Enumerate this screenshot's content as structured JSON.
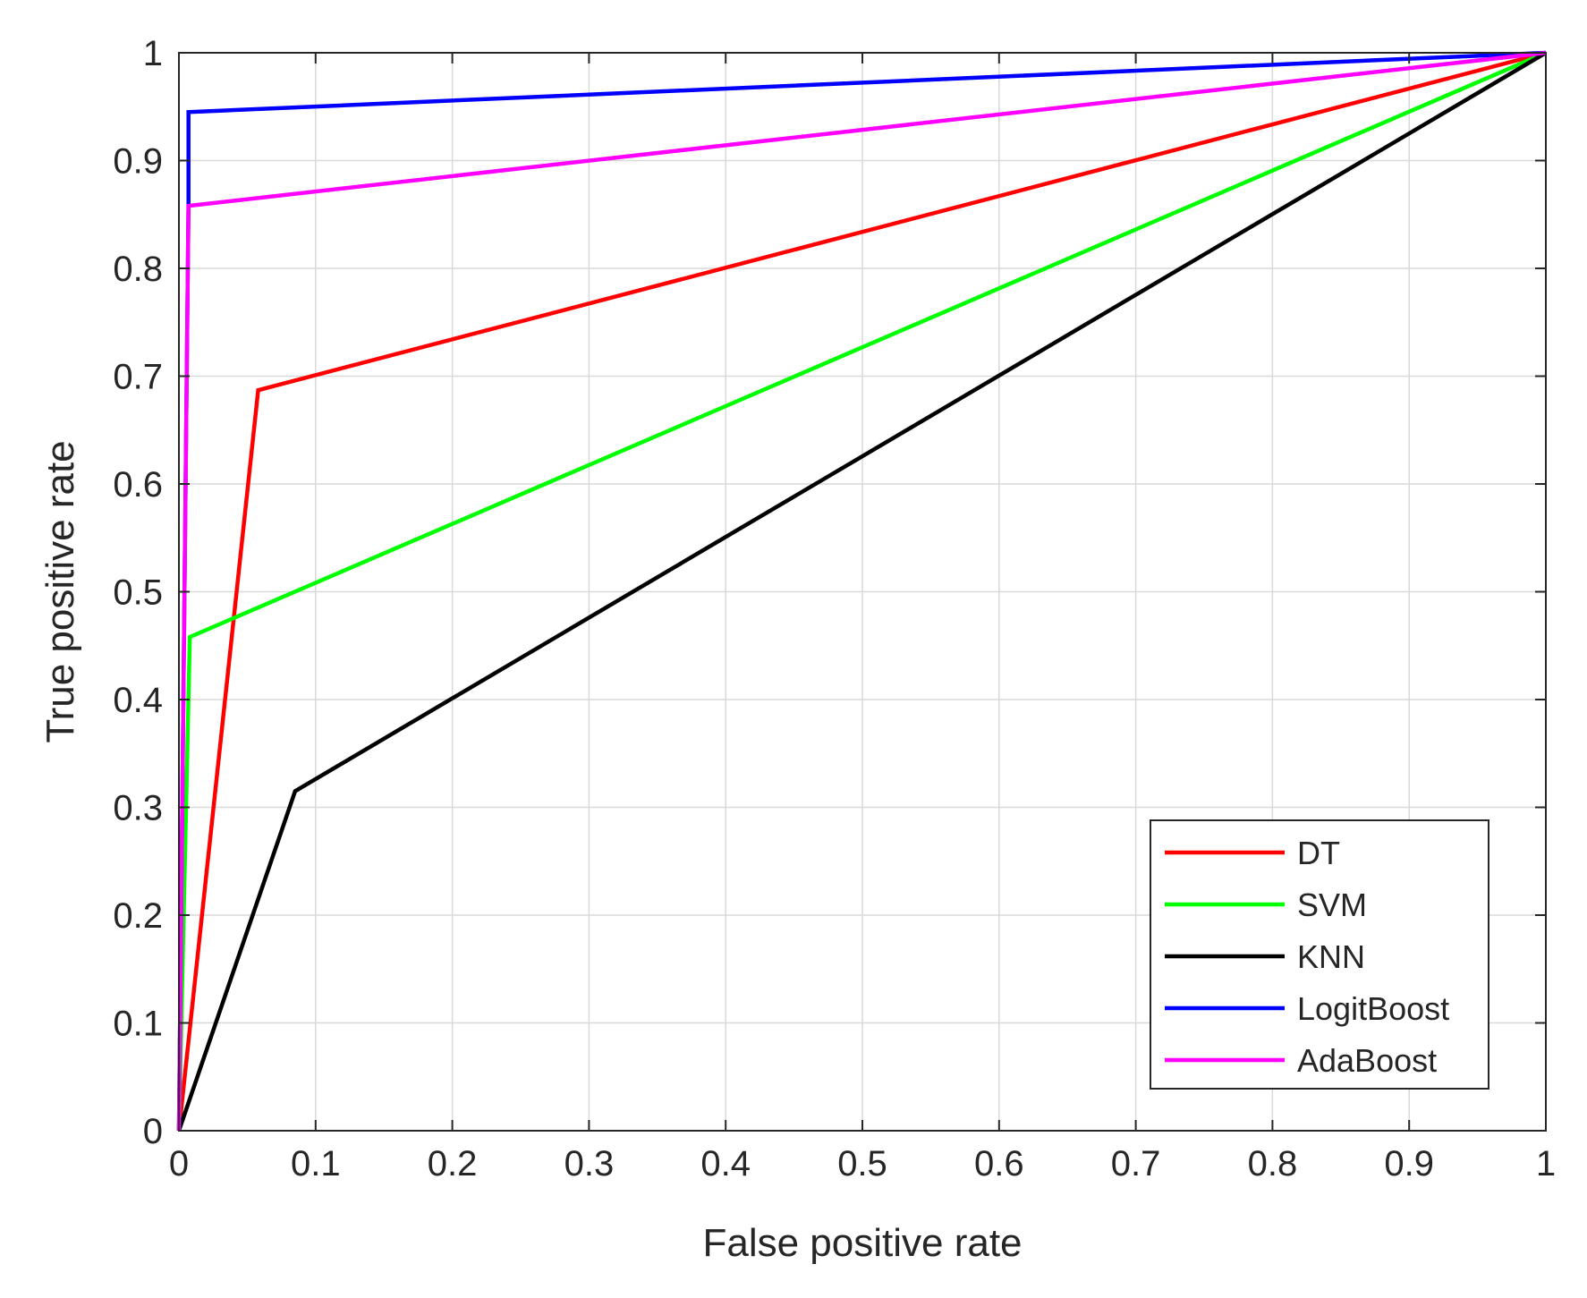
{
  "chart_data": {
    "type": "line",
    "title": "",
    "xlabel": "False positive rate",
    "ylabel": "True positive rate",
    "xlim": [
      0,
      1
    ],
    "ylim": [
      0,
      1
    ],
    "grid": true,
    "xticks": [
      "0",
      "0.1",
      "0.2",
      "0.3",
      "0.4",
      "0.5",
      "0.6",
      "0.7",
      "0.8",
      "0.9",
      "1"
    ],
    "yticks": [
      "0",
      "0.1",
      "0.2",
      "0.3",
      "0.4",
      "0.5",
      "0.6",
      "0.7",
      "0.8",
      "0.9",
      "1"
    ],
    "legend_position": "bottom-right",
    "series": [
      {
        "name": "DT",
        "color": "#ff0000",
        "x": [
          0,
          0.058,
          1
        ],
        "y": [
          0,
          0.687,
          1
        ]
      },
      {
        "name": "SVM",
        "color": "#00ff00",
        "x": [
          0,
          0.008,
          1
        ],
        "y": [
          0,
          0.458,
          1
        ]
      },
      {
        "name": "KNN",
        "color": "#000000",
        "x": [
          0,
          0.085,
          1
        ],
        "y": [
          0,
          0.315,
          1
        ]
      },
      {
        "name": "LogitBoost",
        "color": "#0000ff",
        "x": [
          0,
          0.007,
          0.007,
          1
        ],
        "y": [
          0,
          0.86,
          0.945,
          1
        ]
      },
      {
        "name": "AdaBoost",
        "color": "#ff00ff",
        "x": [
          0,
          0.007,
          1
        ],
        "y": [
          0,
          0.858,
          1
        ]
      }
    ]
  }
}
